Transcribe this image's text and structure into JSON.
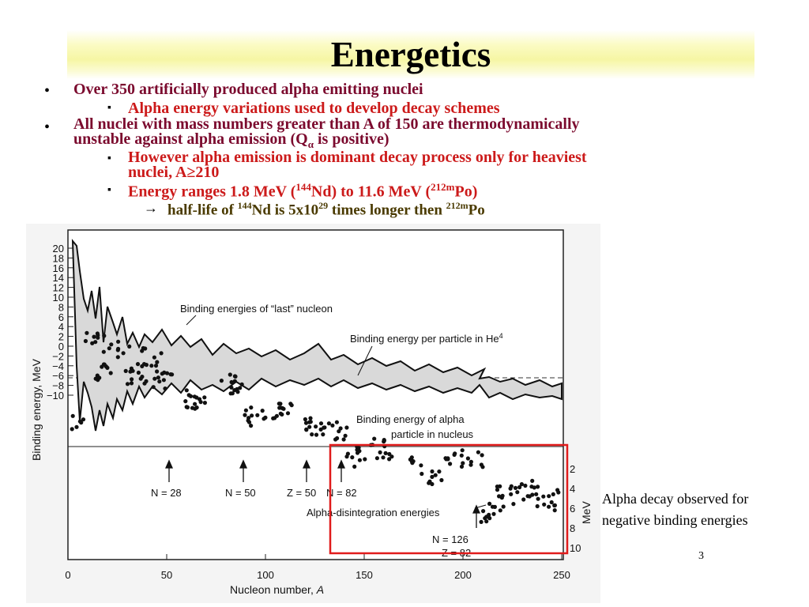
{
  "slide": {
    "title": "Energetics",
    "page_number": "3",
    "caption_line1": "Alpha decay observed for",
    "caption_line2": "negative binding energies"
  },
  "bullets": {
    "b1": "Over  350 artificially produced alpha emitting nuclei",
    "b1_sub": "Alpha energy variations used to develop decay schemes",
    "b2_line1": "All nuclei with mass numbers greater than A of 150 are thermodynamically",
    "b2_line2_pre": "unstable against alpha emission (Q",
    "b2_line2_sub": "α",
    "b2_line2_post": " is positive)",
    "b2_sub1_line1": "However alpha emission is dominant decay process only for heaviest",
    "b2_sub1_line2": "nuclei, A≥210",
    "b2_sub2_pre": "Energy ranges 1.8 MeV (",
    "b2_sub2_sup1": "144",
    "b2_sub2_mid": "Nd) to 11.6 MeV (",
    "b2_sub2_sup2": "212m",
    "b2_sub2_post": "Po)",
    "b2_sub3_pre": "half-life of ",
    "b2_sub3_sup1": "144",
    "b2_sub3_mid1": "Nd is 5x10",
    "b2_sub3_sup2": "29",
    "b2_sub3_mid2": " times longer then ",
    "b2_sub3_sup3": "212m",
    "b2_sub3_post": "Po",
    "bullet_glyph": "•",
    "square_glyph": "▪",
    "arrow_glyph": "→"
  },
  "figure": {
    "xlabel": "Nucleon number,",
    "xlabel_var": "A",
    "ylabel": "Binding energy, MeV",
    "right_ylabel": "MeV",
    "x_ticks": [
      "0",
      "50",
      "100",
      "150",
      "200",
      "250"
    ],
    "y_ticks": [
      "20",
      "18",
      "16",
      "14",
      "12",
      "10",
      "8",
      "6",
      "4",
      "2",
      "0",
      "−2",
      "−4",
      "−6",
      "−8",
      "−10"
    ],
    "right_ticks": [
      "2",
      "4",
      "6",
      "8",
      "10"
    ],
    "annotations": {
      "last_nucleon": "Binding energies of “last” nucleon",
      "per_particle": "Binding energy per particle in He",
      "per_particle_sup": "4",
      "alpha_binding_1": "Binding energy of alpha",
      "alpha_binding_2": "particle in nucleus",
      "disintegration": "Alpha-disintegration energies",
      "n28": "N = 28",
      "n50": "N = 50",
      "z50": "Z = 50",
      "n82": "N = 82",
      "n126": "N = 126",
      "z82": "Z = 82"
    },
    "colors": {
      "highlight_box": "#e01b1b"
    }
  }
}
